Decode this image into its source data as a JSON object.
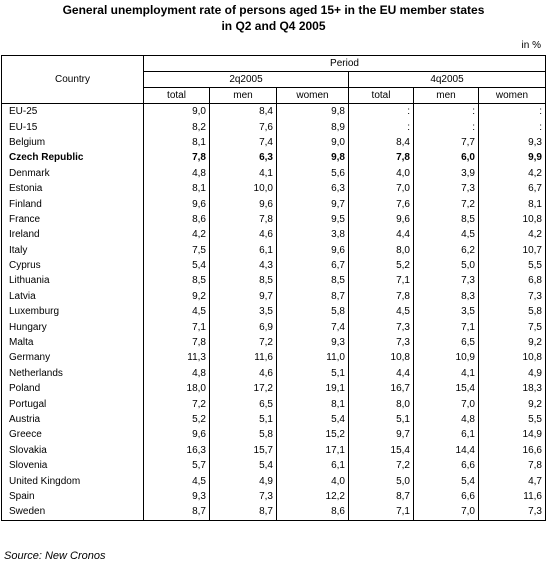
{
  "header": {
    "title_lines": [
      "General unemployment rate of persons aged 15+ in the EU member states",
      "in Q2 and Q4 2005"
    ],
    "unit": "in %"
  },
  "table": {
    "country_header": "Country",
    "period_header": "Period",
    "periods": [
      "2q2005",
      "4q2005"
    ],
    "subheaders": [
      "total",
      "men",
      "women",
      "total",
      "men",
      "women"
    ],
    "rows": [
      {
        "country": "EU-25",
        "values": [
          "9,0",
          "8,4",
          "9,8",
          ":",
          ":",
          ":"
        ]
      },
      {
        "country": "EU-15",
        "values": [
          "8,2",
          "7,6",
          "8,9",
          ":",
          ":",
          ":"
        ]
      },
      {
        "country": "Belgium",
        "values": [
          "8,1",
          "7,4",
          "9,0",
          "8,4",
          "7,7",
          "9,3"
        ]
      },
      {
        "country": "Czech Republic",
        "bold": true,
        "values": [
          "7,8",
          "6,3",
          "9,8",
          "7,8",
          "6,0",
          "9,9"
        ]
      },
      {
        "country": "Denmark",
        "values": [
          "4,8",
          "4,1",
          "5,6",
          "4,0",
          "3,9",
          "4,2"
        ]
      },
      {
        "country": "Estonia",
        "values": [
          "8,1",
          "10,0",
          "6,3",
          "7,0",
          "7,3",
          "6,7"
        ]
      },
      {
        "country": "Finland",
        "values": [
          "9,6",
          "9,6",
          "9,7",
          "7,6",
          "7,2",
          "8,1"
        ]
      },
      {
        "country": "France",
        "values": [
          "8,6",
          "7,8",
          "9,5",
          "9,6",
          "8,5",
          "10,8"
        ]
      },
      {
        "country": "Ireland",
        "values": [
          "4,2",
          "4,6",
          "3,8",
          "4,4",
          "4,5",
          "4,2"
        ]
      },
      {
        "country": "Italy",
        "values": [
          "7,5",
          "6,1",
          "9,6",
          "8,0",
          "6,2",
          "10,7"
        ]
      },
      {
        "country": "Cyprus",
        "values": [
          "5,4",
          "4,3",
          "6,7",
          "5,2",
          "5,0",
          "5,5"
        ]
      },
      {
        "country": "Lithuania",
        "values": [
          "8,5",
          "8,5",
          "8,5",
          "7,1",
          "7,3",
          "6,8"
        ]
      },
      {
        "country": "Latvia",
        "values": [
          "9,2",
          "9,7",
          "8,7",
          "7,8",
          "8,3",
          "7,3"
        ]
      },
      {
        "country": "Luxemburg",
        "values": [
          "4,5",
          "3,5",
          "5,8",
          "4,5",
          "3,5",
          "5,8"
        ]
      },
      {
        "country": "Hungary",
        "values": [
          "7,1",
          "6,9",
          "7,4",
          "7,3",
          "7,1",
          "7,5"
        ]
      },
      {
        "country": "Malta",
        "values": [
          "7,8",
          "7,2",
          "9,3",
          "7,3",
          "6,5",
          "9,2"
        ]
      },
      {
        "country": "Germany",
        "values": [
          "11,3",
          "11,6",
          "11,0",
          "10,8",
          "10,9",
          "10,8"
        ]
      },
      {
        "country": "Netherlands",
        "values": [
          "4,8",
          "4,6",
          "5,1",
          "4,4",
          "4,1",
          "4,9"
        ]
      },
      {
        "country": "Poland",
        "values": [
          "18,0",
          "17,2",
          "19,1",
          "16,7",
          "15,4",
          "18,3"
        ]
      },
      {
        "country": "Portugal",
        "values": [
          "7,2",
          "6,5",
          "8,1",
          "8,0",
          "7,0",
          "9,2"
        ]
      },
      {
        "country": "Austria",
        "values": [
          "5,2",
          "5,1",
          "5,4",
          "5,1",
          "4,8",
          "5,5"
        ]
      },
      {
        "country": "Greece",
        "values": [
          "9,6",
          "5,8",
          "15,2",
          "9,7",
          "6,1",
          "14,9"
        ]
      },
      {
        "country": "Slovakia",
        "values": [
          "16,3",
          "15,7",
          "17,1",
          "15,4",
          "14,4",
          "16,6"
        ]
      },
      {
        "country": "Slovenia",
        "values": [
          "5,7",
          "5,4",
          "6,1",
          "7,2",
          "6,6",
          "7,8"
        ]
      },
      {
        "country": "United Kingdom",
        "values": [
          "4,5",
          "4,9",
          "4,0",
          "5,0",
          "5,4",
          "4,7"
        ]
      },
      {
        "country": "Spain",
        "values": [
          "9,3",
          "7,3",
          "12,2",
          "8,7",
          "6,6",
          "11,6"
        ]
      },
      {
        "country": "Sweden",
        "values": [
          "8,7",
          "8,7",
          "8,6",
          "7,1",
          "7,0",
          "7,3"
        ]
      }
    ]
  },
  "footer": {
    "source": "Source: New Cronos"
  }
}
